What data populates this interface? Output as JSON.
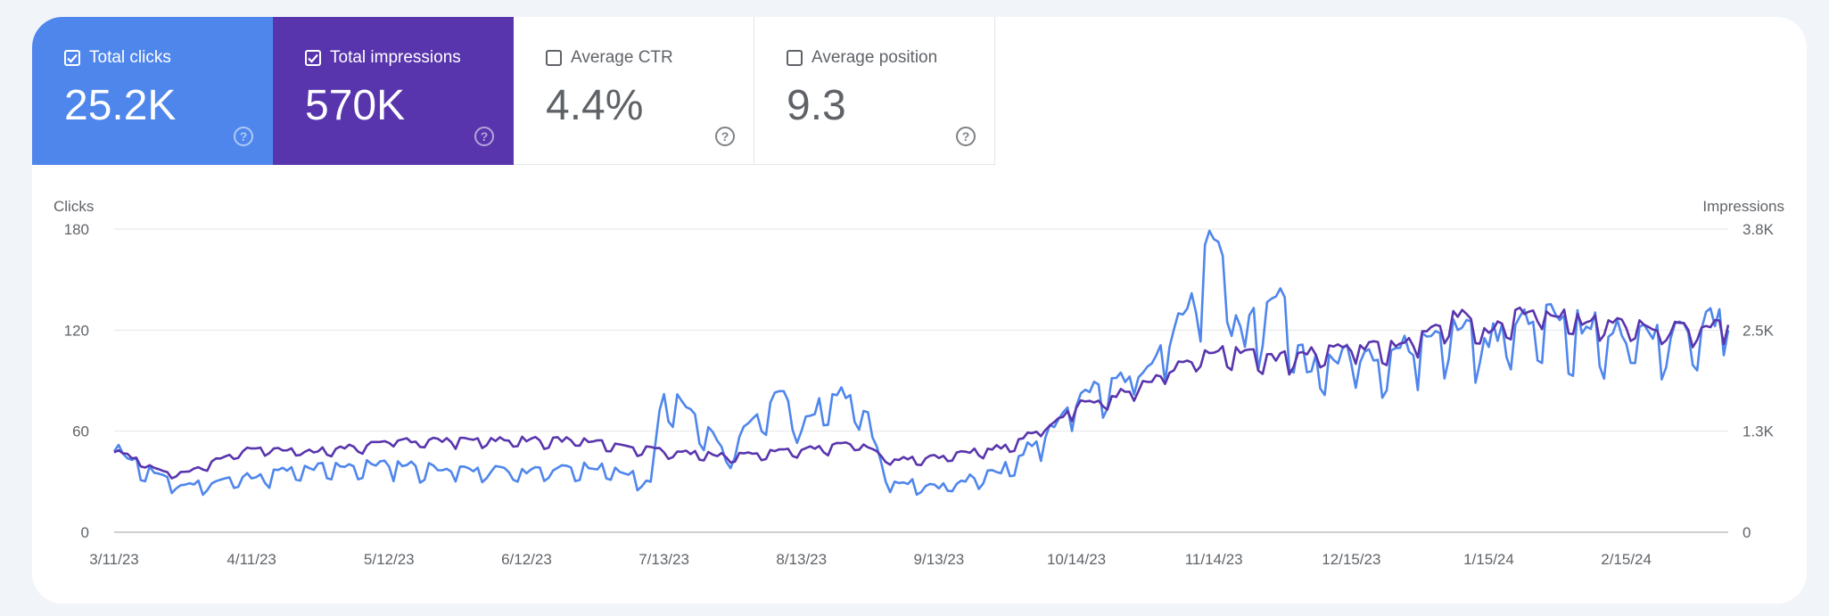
{
  "metrics": [
    {
      "label": "Total clicks",
      "value": "25.2K",
      "checked": true
    },
    {
      "label": "Total impressions",
      "value": "570K",
      "checked": true
    },
    {
      "label": "Average CTR",
      "value": "4.4%",
      "checked": false
    },
    {
      "label": "Average position",
      "value": "9.3",
      "checked": false
    }
  ],
  "help_glyph": "?",
  "colors": {
    "clicks": "#4f86ec",
    "impressions": "#5935ad",
    "grid": "#e6e6e6",
    "text": "#5f6368"
  },
  "chart_data": {
    "type": "line",
    "left_axis": {
      "label": "Clicks",
      "ticks": [
        "0",
        "60",
        "120",
        "180"
      ],
      "range": [
        0,
        180
      ]
    },
    "right_axis": {
      "label": "Impressions",
      "ticks": [
        "0",
        "1.3K",
        "2.5K",
        "3.8K"
      ],
      "range": [
        0,
        3800
      ]
    },
    "x_tick_labels": [
      "3/11/23",
      "4/11/23",
      "5/12/23",
      "6/12/23",
      "7/13/23",
      "8/13/23",
      "9/13/23",
      "10/14/23",
      "11/14/23",
      "12/15/23",
      "1/15/24",
      "2/15/24"
    ],
    "x_range": [
      "3/11/23",
      "3/9/24"
    ],
    "series": [
      {
        "name": "Clicks",
        "axis": "left",
        "color": "#4f86ec",
        "points": [
          [
            "3/11/23",
            48
          ],
          [
            "3/25/23",
            26
          ],
          [
            "4/11/23",
            32
          ],
          [
            "4/25/23",
            37
          ],
          [
            "5/12/23",
            39
          ],
          [
            "5/26/23",
            36
          ],
          [
            "6/12/23",
            35
          ],
          [
            "6/26/23",
            38
          ],
          [
            "7/10/23",
            30
          ],
          [
            "7/13/23",
            82
          ],
          [
            "7/20/23",
            70
          ],
          [
            "7/27/23",
            42
          ],
          [
            "8/3/23",
            70
          ],
          [
            "8/10/23",
            78
          ],
          [
            "8/13/23",
            60
          ],
          [
            "8/20/23",
            82
          ],
          [
            "8/27/23",
            72
          ],
          [
            "9/1/23",
            30
          ],
          [
            "9/13/23",
            26
          ],
          [
            "9/27/23",
            35
          ],
          [
            "10/7/23",
            56
          ],
          [
            "10/14/23",
            75
          ],
          [
            "10/28/23",
            92
          ],
          [
            "11/4/23",
            110
          ],
          [
            "11/10/23",
            130
          ],
          [
            "11/14/23",
            174
          ],
          [
            "11/21/23",
            110
          ],
          [
            "11/28/23",
            140
          ],
          [
            "12/5/23",
            95
          ],
          [
            "12/15/23",
            100
          ],
          [
            "12/29/23",
            105
          ],
          [
            "1/8/24",
            120
          ],
          [
            "1/15/24",
            110
          ],
          [
            "1/25/24",
            125
          ],
          [
            "2/5/24",
            118
          ],
          [
            "2/15/24",
            112
          ],
          [
            "2/25/24",
            115
          ],
          [
            "3/9/24",
            120
          ]
        ]
      },
      {
        "name": "Impressions",
        "axis": "right",
        "color": "#5935ad",
        "points": [
          [
            "3/11/23",
            1000
          ],
          [
            "3/25/23",
            700
          ],
          [
            "4/11/23",
            1050
          ],
          [
            "4/25/23",
            1000
          ],
          [
            "5/12/23",
            1120
          ],
          [
            "5/26/23",
            1130
          ],
          [
            "6/12/23",
            1140
          ],
          [
            "6/26/23",
            1130
          ],
          [
            "7/13/23",
            1000
          ],
          [
            "7/27/23",
            940
          ],
          [
            "8/13/23",
            1030
          ],
          [
            "8/27/23",
            1100
          ],
          [
            "9/1/23",
            880
          ],
          [
            "9/13/23",
            930
          ],
          [
            "9/27/23",
            1050
          ],
          [
            "10/7/23",
            1280
          ],
          [
            "10/14/23",
            1560
          ],
          [
            "10/28/23",
            1770
          ],
          [
            "11/4/23",
            2000
          ],
          [
            "11/14/23",
            2250
          ],
          [
            "11/28/23",
            2150
          ],
          [
            "12/15/23",
            2270
          ],
          [
            "12/29/23",
            2330
          ],
          [
            "1/8/24",
            2700
          ],
          [
            "1/15/24",
            2500
          ],
          [
            "1/25/24",
            2780
          ],
          [
            "2/5/24",
            2600
          ],
          [
            "2/15/24",
            2560
          ],
          [
            "2/25/24",
            2500
          ],
          [
            "3/9/24",
            2600
          ]
        ]
      }
    ]
  }
}
